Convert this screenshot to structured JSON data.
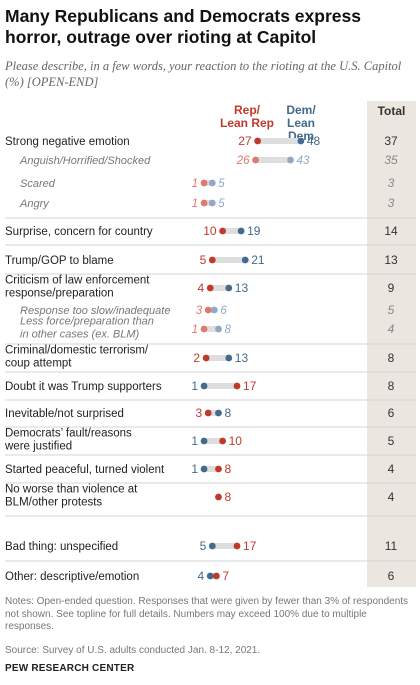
{
  "title": "Many Republicans and Democrats express horror, outrage over rioting at Capitol",
  "subtitle": "Please describe, in a few words, your reaction to the rioting at the U.S. Capitol (%) [OPEN-END]",
  "legend": {
    "rep": "Rep/ Lean Rep",
    "dem": "Dem/ Lean Dem",
    "total": "Total"
  },
  "colors": {
    "rep": "#c0392b",
    "dem": "#456a8c",
    "rep_light": "#e07a6e",
    "dem_light": "#8fa9c4",
    "bar": "#dedede",
    "total_bg": "#ebe7e0"
  },
  "chart_data": {
    "type": "dot",
    "xlim": [
      0,
      50
    ],
    "series": [
      {
        "name": "Rep/Lean Rep",
        "key": "rep"
      },
      {
        "name": "Dem/Lean Dem",
        "key": "dem"
      },
      {
        "name": "Total",
        "key": "total"
      }
    ],
    "rows": [
      {
        "label": "Strong negative emotion",
        "rep": 27,
        "dem": 48,
        "total": 37,
        "level": 0
      },
      {
        "label": "Anguish/Horrified/Shocked",
        "rep": 26,
        "dem": 43,
        "total": 35,
        "level": 1
      },
      {
        "label": "Scared",
        "rep": 1,
        "dem": 5,
        "total": 3,
        "level": 1
      },
      {
        "label": "Angry",
        "rep": 1,
        "dem": 5,
        "total": 3,
        "level": 1
      },
      {
        "label": "Surprise, concern for country",
        "rep": 10,
        "dem": 19,
        "total": 14,
        "level": 0
      },
      {
        "label": "Trump/GOP to blame",
        "rep": 5,
        "dem": 21,
        "total": 13,
        "level": 0
      },
      {
        "label": "Criticism of law enforcement response/preparation",
        "rep": 4,
        "dem": 13,
        "total": 9,
        "level": 0
      },
      {
        "label": "Response too slow/inadequate",
        "rep": 3,
        "dem": 6,
        "total": 5,
        "level": 1
      },
      {
        "label": "Less force/preparation than in other cases (ex. BLM)",
        "rep": 1,
        "dem": 8,
        "total": 4,
        "level": 1
      },
      {
        "label": "Criminal/domestic terrorism/ coup attempt",
        "rep": 2,
        "dem": 13,
        "total": 8,
        "level": 0
      },
      {
        "label": "Doubt it was Trump supporters",
        "rep": 17,
        "dem": 1,
        "total": 8,
        "level": 0
      },
      {
        "label": "Inevitable/not surprised",
        "rep": 3,
        "dem": 8,
        "total": 6,
        "level": 0
      },
      {
        "label": "Democrats’ fault/reasons were justified",
        "rep": 10,
        "dem": 1,
        "total": 5,
        "level": 0
      },
      {
        "label": "Started peaceful, turned violent",
        "rep": 8,
        "dem": 1,
        "total": 4,
        "level": 0
      },
      {
        "label": "No worse than violence at BLM/other protests",
        "rep": 8,
        "dem": null,
        "total": 4,
        "level": 0
      },
      {
        "label": "Bad thing: unspecified",
        "rep": 17,
        "dem": 5,
        "total": 11,
        "level": 0
      },
      {
        "label": "Other: descriptive/emotion",
        "rep": 7,
        "dem": 4,
        "total": 6,
        "level": 0
      }
    ]
  },
  "notes": "Notes: Open-ended question. Responses that were given by fewer than 3% of respondents not shown. See topline for full details. Numbers may exceed 100% due to multiple responses.",
  "source": "Source: Survey of U.S. adults conducted Jan. 8-12, 2021.",
  "org": "PEW RESEARCH CENTER"
}
